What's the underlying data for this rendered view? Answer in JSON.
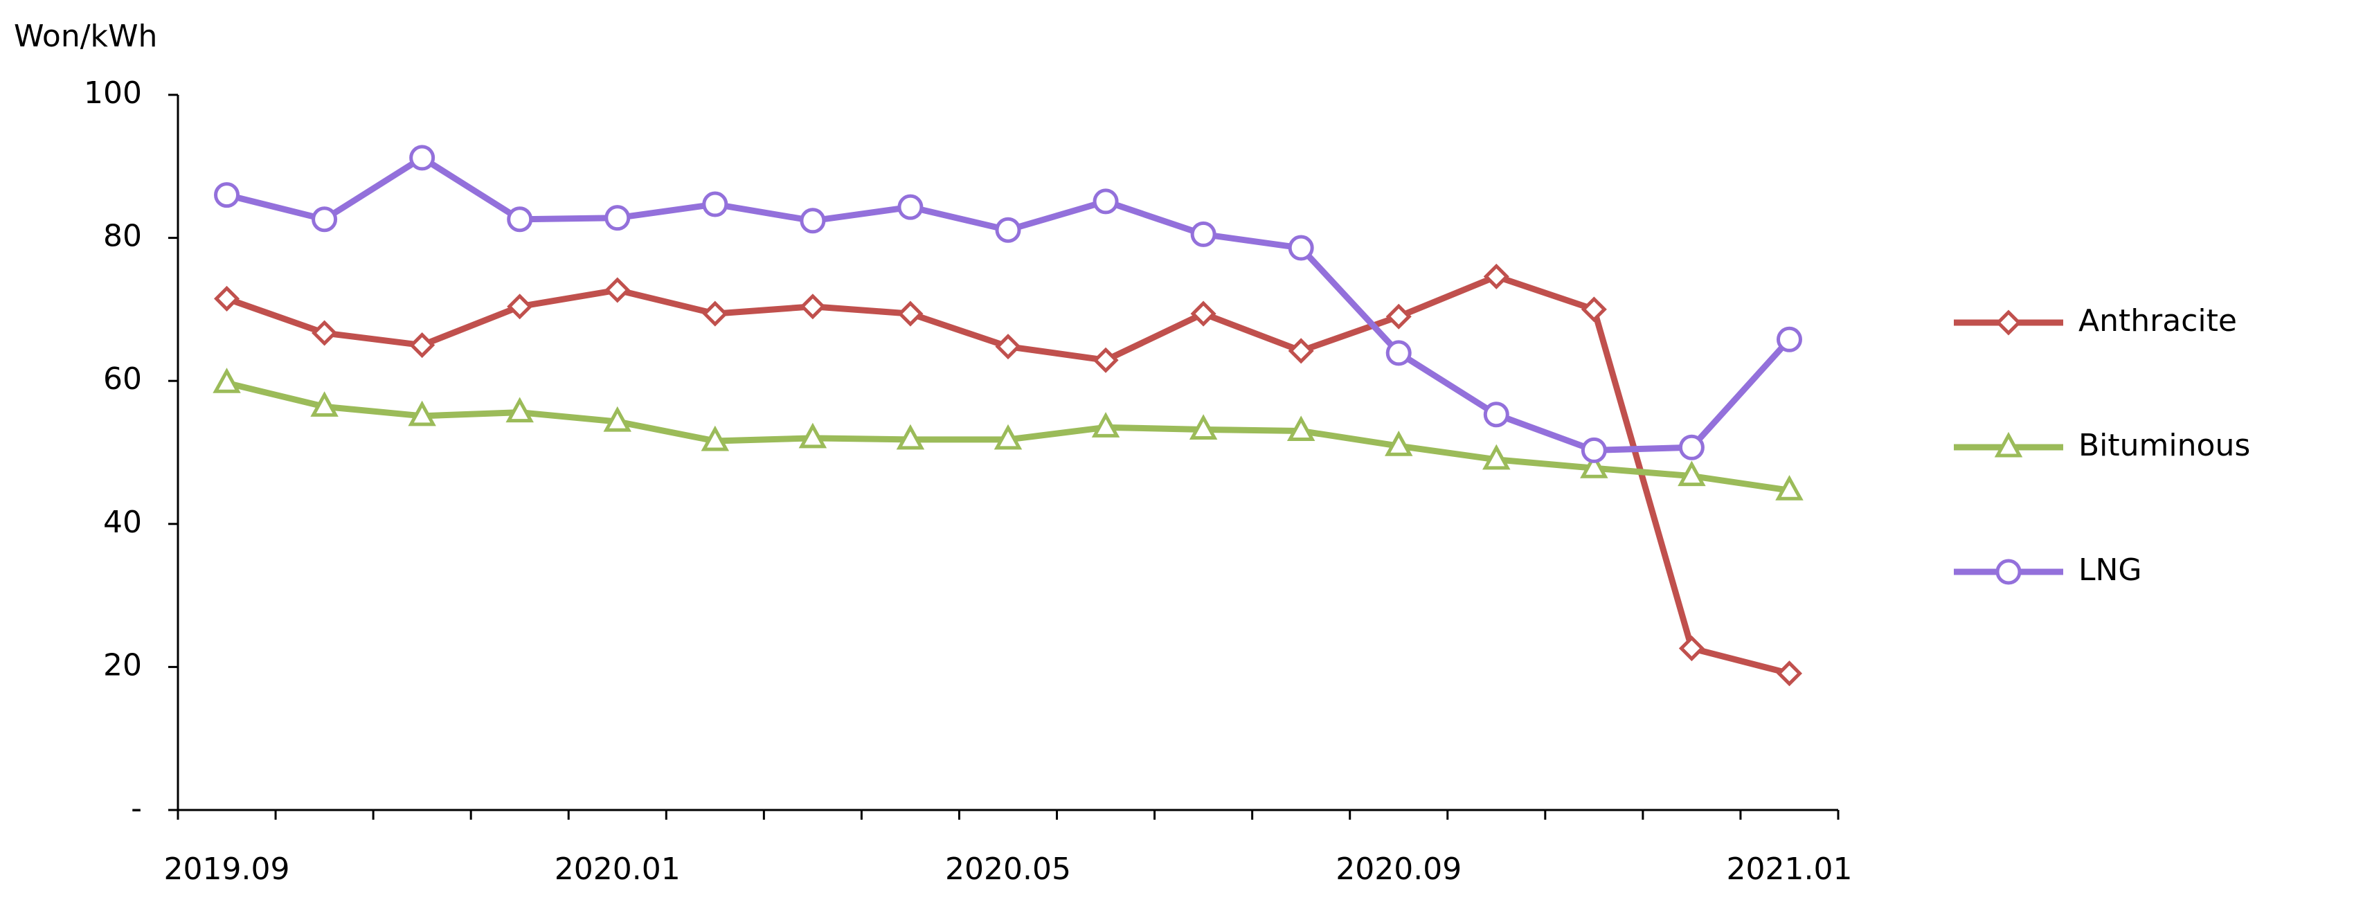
{
  "chart_data": {
    "type": "line",
    "y_axis_label": "Won/kWh",
    "categories": [
      "2019.09",
      null,
      null,
      null,
      "2020.01",
      null,
      null,
      null,
      "2020.05",
      null,
      null,
      null,
      "2020.09",
      null,
      null,
      null,
      "2021.01"
    ],
    "series": [
      {
        "name": "Anthracite",
        "color": "#c0504d",
        "marker": "diamond",
        "values": [
          71.5,
          66.7,
          65,
          70.4,
          72.7,
          69.4,
          70.4,
          69.4,
          64.8,
          62.9,
          69.4,
          64.2,
          69,
          74.6,
          70,
          22.6,
          19.1
        ]
      },
      {
        "name": "Bituminous",
        "color": "#9bbb59",
        "marker": "triangle",
        "values": [
          59.7,
          56.4,
          55.1,
          55.6,
          54.3,
          51.6,
          52,
          51.8,
          51.8,
          53.5,
          53.2,
          53,
          50.9,
          49,
          47.8,
          46.7,
          44.7
        ]
      },
      {
        "name": "LNG",
        "color": "#9370db",
        "marker": "circle",
        "values": [
          86,
          82.6,
          91.2,
          82.6,
          82.8,
          84.7,
          82.4,
          84.3,
          81.1,
          85.1,
          80.5,
          78.6,
          63.9,
          55.3,
          50.3,
          50.7,
          65.8
        ]
      }
    ],
    "ylim": [
      0,
      100
    ],
    "yticks": [
      {
        "value": 0,
        "label": "-"
      },
      20,
      40,
      60,
      80,
      100
    ],
    "legend": "right"
  }
}
